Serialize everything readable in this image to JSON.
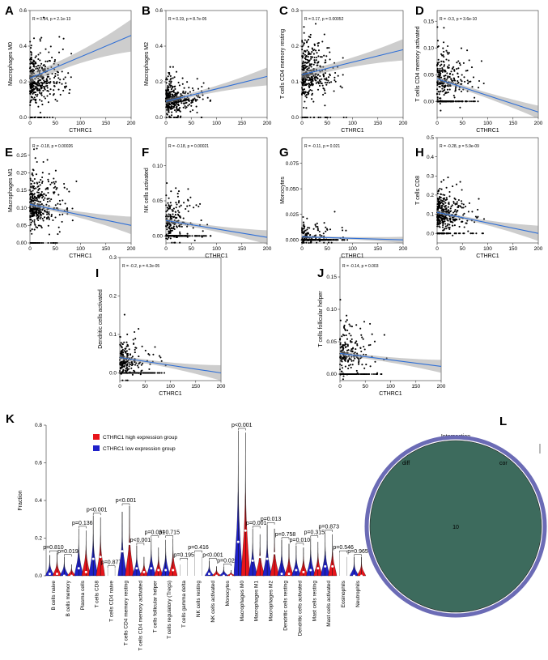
{
  "panel_labels": [
    "A",
    "B",
    "C",
    "D",
    "E",
    "F",
    "G",
    "H",
    "I",
    "J",
    "K",
    "L"
  ],
  "chart_data": [
    {
      "id": "A",
      "type": "scatter",
      "xlabel": "CTHRC1",
      "ylabel": "Macrophages M0",
      "annotation": "R = 0.34, p = 2.1e-13",
      "xlim": [
        0,
        200
      ],
      "ylim": [
        0,
        0.6
      ],
      "xticks": [
        "0",
        "50",
        "100",
        "150",
        "200"
      ],
      "yticks": [
        "0.0",
        "0.2",
        "0.4",
        "0.6"
      ],
      "fit": {
        "y0": 0.22,
        "y1": 0.46,
        "band": [
          0.025,
          0.09
        ]
      },
      "density": {
        "n": 380,
        "ymean": 0.2,
        "ysd": 0.11,
        "floor": 0.0,
        "floorFrac": 0.05,
        "xrate": 0.045
      }
    },
    {
      "id": "B",
      "type": "scatter",
      "xlabel": "",
      "ylabel": "Macrophages M2",
      "annotation": "R = 0.19, p = 8.7e-05",
      "xlim": [
        0,
        200
      ],
      "ylim": [
        0,
        0.6
      ],
      "xticks": [
        "0",
        "50",
        "100",
        "150",
        "200"
      ],
      "yticks": [
        "0.0",
        "0.2",
        "0.4",
        "0.6"
      ],
      "fit": {
        "y0": 0.09,
        "y1": 0.23,
        "band": [
          0.012,
          0.05
        ]
      },
      "density": {
        "n": 380,
        "ymean": 0.1,
        "ysd": 0.07,
        "floor": 0.0,
        "floorFrac": 0.03,
        "xrate": 0.045
      }
    },
    {
      "id": "C",
      "type": "scatter",
      "xlabel": "CTHRC1",
      "ylabel": "T cells CD4 memory resting",
      "annotation": "R = 0.17, p = 0.00052",
      "xlim": [
        0,
        200
      ],
      "ylim": [
        0,
        0.3
      ],
      "xticks": [
        "0",
        "50",
        "100",
        "150",
        "200"
      ],
      "yticks": [
        "0.0",
        "0.1",
        "0.2",
        "0.3"
      ],
      "fit": {
        "y0": 0.12,
        "y1": 0.19,
        "band": [
          0.01,
          0.03
        ]
      },
      "density": {
        "n": 380,
        "ymean": 0.12,
        "ysd": 0.06,
        "floor": 0.0,
        "floorFrac": 0.06,
        "xrate": 0.045
      }
    },
    {
      "id": "D",
      "type": "scatter",
      "xlabel": "CTHRC1",
      "ylabel": "T cells CD4 memory activated",
      "annotation": "R = -0.3, p = 3.6e-10",
      "xlim": [
        0,
        200
      ],
      "ylim": [
        -0.03,
        0.17
      ],
      "xticks": [
        "0",
        "50",
        "100",
        "150",
        "200"
      ],
      "yticks": [
        "0.00",
        "0.05",
        "0.10",
        "0.15"
      ],
      "fit": {
        "y0": 0.042,
        "y1": -0.02,
        "band": [
          0.004,
          0.012
        ]
      },
      "density": {
        "n": 380,
        "ymean": 0.04,
        "ysd": 0.035,
        "floor": 0.0,
        "floorFrac": 0.4,
        "xrate": 0.045
      }
    },
    {
      "id": "E",
      "type": "scatter",
      "xlabel": "CTHRC1",
      "ylabel": "Macrophages M1",
      "annotation": "R = -0.18, p = 0.00026",
      "xlim": [
        0,
        200
      ],
      "ylim": [
        0,
        0.3
      ],
      "xticks": [
        "0",
        "50",
        "100",
        "150",
        "200"
      ],
      "yticks": [
        "0.00",
        "0.05",
        "0.10",
        "0.15",
        "0.20",
        "0.25"
      ],
      "fit": {
        "y0": 0.11,
        "y1": 0.05,
        "band": [
          0.006,
          0.025
        ]
      },
      "density": {
        "n": 380,
        "ymean": 0.1,
        "ysd": 0.055,
        "floor": 0.0,
        "floorFrac": 0.08,
        "xrate": 0.045
      }
    },
    {
      "id": "F",
      "type": "scatter",
      "xlabel": "CTHRC1",
      "ylabel": "NK cells activated",
      "annotation": "R = -0.18, p = 0.00021",
      "xlim": [
        0,
        200
      ],
      "ylim": [
        -0.01,
        0.14
      ],
      "xticks": [
        "0",
        "50",
        "100",
        "150",
        "200"
      ],
      "yticks": [
        "0.00",
        "0.05",
        "0.10"
      ],
      "fit": {
        "y0": 0.022,
        "y1": -0.002,
        "band": [
          0.003,
          0.01
        ]
      },
      "density": {
        "n": 380,
        "ymean": 0.02,
        "ysd": 0.025,
        "floor": 0.0,
        "floorFrac": 0.5,
        "xrate": 0.045
      }
    },
    {
      "id": "G",
      "type": "scatter",
      "xlabel": "CTHRC1",
      "ylabel": "Monocytes",
      "annotation": "R = -0.11, p = 0.021",
      "xlim": [
        0,
        200
      ],
      "ylim": [
        -0.003,
        0.1
      ],
      "xticks": [
        "0",
        "50",
        "100",
        "150",
        "200"
      ],
      "yticks": [
        "0.000",
        "0.025",
        "0.050",
        "0.075"
      ],
      "fit": {
        "y0": 0.003,
        "y1": 0.0,
        "band": [
          0.001,
          0.003
        ]
      },
      "density": {
        "n": 380,
        "ymean": 0.004,
        "ysd": 0.01,
        "floor": 0.0,
        "floorFrac": 0.65,
        "xrate": 0.045
      }
    },
    {
      "id": "H",
      "type": "scatter",
      "xlabel": "CTHRC1",
      "ylabel": "T cells CD8",
      "annotation": "R = -0.28, p = 5.9e-09",
      "xlim": [
        0,
        200
      ],
      "ylim": [
        -0.05,
        0.5
      ],
      "xticks": [
        "0",
        "50",
        "100",
        "150",
        "200"
      ],
      "yticks": [
        "0.0",
        "0.1",
        "0.2",
        "0.3",
        "0.4",
        "0.5"
      ],
      "fit": {
        "y0": 0.11,
        "y1": 0.0,
        "band": [
          0.008,
          0.04
        ]
      },
      "density": {
        "n": 380,
        "ymean": 0.1,
        "ysd": 0.08,
        "floor": 0.0,
        "floorFrac": 0.15,
        "xrate": 0.045
      }
    },
    {
      "id": "I",
      "type": "scatter",
      "xlabel": "CTHRC1",
      "ylabel": "Dendritic cells activated",
      "annotation": "R = -0.2, p = 4.2e-05",
      "xlim": [
        0,
        200
      ],
      "ylim": [
        -0.02,
        0.3
      ],
      "xticks": [
        "0",
        "50",
        "100",
        "150",
        "200"
      ],
      "yticks": [
        "0.0",
        "0.1",
        "0.2",
        "0.3"
      ],
      "fit": {
        "y0": 0.04,
        "y1": 0.0,
        "band": [
          0.005,
          0.02
        ]
      },
      "density": {
        "n": 380,
        "ymean": 0.03,
        "ysd": 0.04,
        "floor": 0.0,
        "floorFrac": 0.45,
        "xrate": 0.045
      }
    },
    {
      "id": "J",
      "type": "scatter",
      "xlabel": "CTHRC1",
      "ylabel": "T cells follicular helper",
      "annotation": "R = -0.14, p = 0.003",
      "xlim": [
        0,
        200
      ],
      "ylim": [
        -0.01,
        0.18
      ],
      "xticks": [
        "0",
        "50",
        "100",
        "150",
        "200"
      ],
      "yticks": [
        "0.00",
        "0.05",
        "0.10",
        "0.15"
      ],
      "fit": {
        "y0": 0.032,
        "y1": 0.012,
        "band": [
          0.003,
          0.01
        ]
      },
      "density": {
        "n": 380,
        "ymean": 0.03,
        "ysd": 0.03,
        "floor": 0.0,
        "floorFrac": 0.45,
        "xrate": 0.045
      }
    },
    {
      "id": "K",
      "type": "violin",
      "ylabel": "Fraction",
      "ylim": [
        0,
        0.8
      ],
      "yticks": [
        "0.0",
        "0.2",
        "0.4",
        "0.6",
        "0.8"
      ],
      "legend": [
        {
          "name": "CTHRC1 high expression group",
          "color": "#e8141b"
        },
        {
          "name": "CTHRC1 low expression group",
          "color": "#1f21c9"
        }
      ],
      "categories": [
        "B cells naive",
        "B cells memory",
        "Plasma cells",
        "T cells CD8",
        "T cells CD4 naive",
        "T cells CD4 memory resting",
        "T cells CD4 memory activated",
        "T cells follicular helper",
        "T cells regulatory (Tregs)",
        "T cells gamma delta",
        "NK cells resting",
        "NK cells activated",
        "Monocytes",
        "Macrophages M0",
        "Macrophages M1",
        "Macrophages M2",
        "Dendritic cells resting",
        "Dendritic cells activated",
        "Mast cells resting",
        "Mast cells activated",
        "Eosinophils",
        "Neutrophils"
      ],
      "pvalues": [
        "p=0.810",
        "p=0.019",
        "p=0.136",
        "p<0.001",
        "p=0.877",
        "p<0.001",
        "p<0.001",
        "p=0.031",
        "p=0.715",
        "p=0.195",
        "p=0.416",
        "p<0.001",
        "p=0.026",
        "p<0.001",
        "p=0.001",
        "p=0.013",
        "p=0.758",
        "p=0.010",
        "p=0.315",
        "p=0.873",
        "p=0.546",
        "p=0.965"
      ],
      "high_max": [
        0.12,
        0.06,
        0.24,
        0.31,
        0.04,
        0.37,
        0.1,
        0.15,
        0.2,
        0.08,
        0.1,
        0.05,
        0.03,
        0.76,
        0.22,
        0.25,
        0.17,
        0.15,
        0.18,
        0.22,
        0.1,
        0.1
      ],
      "low_max": [
        0.11,
        0.1,
        0.25,
        0.32,
        0.04,
        0.34,
        0.16,
        0.2,
        0.19,
        0.06,
        0.12,
        0.08,
        0.05,
        0.77,
        0.25,
        0.27,
        0.19,
        0.16,
        0.2,
        0.23,
        0.12,
        0.1
      ],
      "high_median": [
        0.01,
        0.0,
        0.02,
        0.1,
        0.0,
        0.17,
        0.02,
        0.03,
        0.03,
        0.0,
        0.03,
        0.0,
        0.0,
        0.24,
        0.1,
        0.12,
        0.01,
        0.02,
        0.04,
        0.05,
        0.0,
        0.0
      ],
      "low_median": [
        0.01,
        0.0,
        0.04,
        0.09,
        0.0,
        0.13,
        0.04,
        0.04,
        0.03,
        0.0,
        0.03,
        0.01,
        0.0,
        0.18,
        0.08,
        0.09,
        0.01,
        0.03,
        0.03,
        0.05,
        0.0,
        0.0
      ],
      "visible": [
        true,
        true,
        true,
        true,
        false,
        true,
        true,
        true,
        true,
        false,
        false,
        true,
        true,
        true,
        true,
        true,
        true,
        true,
        true,
        true,
        false,
        true
      ]
    },
    {
      "id": "L",
      "type": "venn",
      "title": "Intersection",
      "set_left": "diff",
      "set_right": "cor",
      "intersection_count": "10",
      "fill": "#3d6b5d",
      "ring": "#6b6bb5"
    }
  ]
}
